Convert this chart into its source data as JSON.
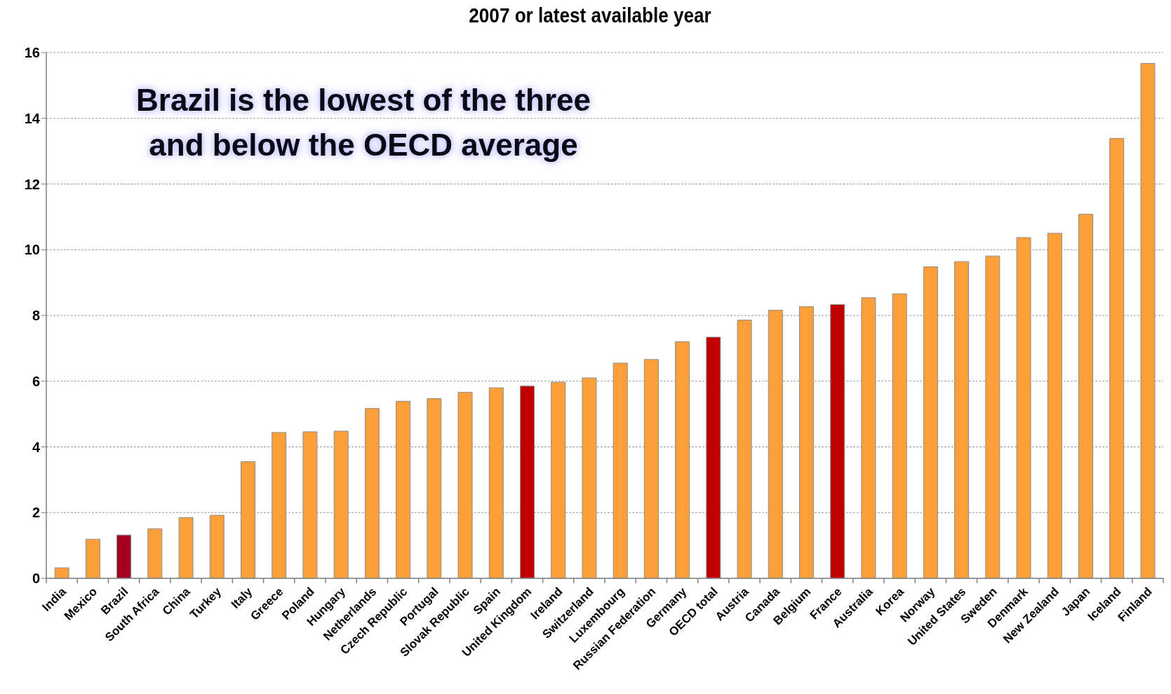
{
  "chart_data": {
    "type": "bar",
    "title": "2007 or latest available year",
    "annotations": [
      "Brazil is the lowest of the three and below the OECD average"
    ],
    "categories": [
      "India",
      "Mexico",
      "Brazil",
      "South Africa",
      "China",
      "Turkey",
      "Italy",
      "Greece",
      "Poland",
      "Hungary",
      "Netherlands",
      "Czech Republic",
      "Portugal",
      "Slovak Republic",
      "Spain",
      "United Kingdom",
      "Ireland",
      "Switzerland",
      "Luxembourg",
      "Russian Federation",
      "Germany",
      "OECD total",
      "Austria",
      "Canada",
      "Belgium",
      "France",
      "Australia",
      "Korea",
      "Norway",
      "United States",
      "Sweden",
      "Denmark",
      "New Zealand",
      "Japan",
      "Iceland",
      "Finland"
    ],
    "values": [
      0.32,
      1.19,
      1.32,
      1.51,
      1.85,
      1.92,
      3.55,
      4.44,
      4.46,
      4.48,
      5.17,
      5.39,
      5.47,
      5.66,
      5.8,
      5.85,
      5.97,
      6.1,
      6.55,
      6.66,
      7.2,
      7.34,
      7.86,
      8.16,
      8.27,
      8.33,
      8.54,
      8.66,
      9.48,
      9.64,
      9.81,
      10.37,
      10.5,
      11.08,
      13.39,
      15.67
    ],
    "colors": [
      "#ff9f3a",
      "#ff9f3a",
      "#a50021",
      "#ff9f3a",
      "#ff9f3a",
      "#ff9f3a",
      "#ff9f3a",
      "#ff9f3a",
      "#ff9f3a",
      "#ff9f3a",
      "#ff9f3a",
      "#ff9f3a",
      "#ff9f3a",
      "#ff9f3a",
      "#ff9f3a",
      "#c00000",
      "#ff9f3a",
      "#ff9f3a",
      "#ff9f3a",
      "#ff9f3a",
      "#ff9f3a",
      "#c00000",
      "#ff9f3a",
      "#ff9f3a",
      "#ff9f3a",
      "#c00000",
      "#ff9f3a",
      "#ff9f3a",
      "#ff9f3a",
      "#ff9f3a",
      "#ff9f3a",
      "#ff9f3a",
      "#ff9f3a",
      "#ff9f3a",
      "#ff9f3a",
      "#ff9f3a"
    ],
    "ylim": [
      0,
      16
    ],
    "yticks": [
      0,
      2,
      4,
      6,
      8,
      10,
      12,
      14,
      16
    ],
    "grid": "y"
  }
}
